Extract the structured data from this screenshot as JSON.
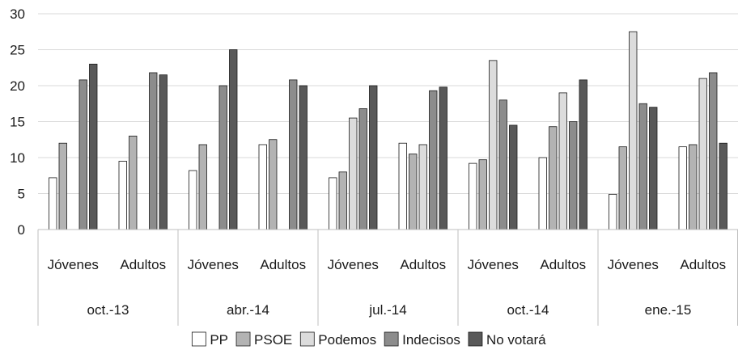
{
  "chart_data": {
    "type": "bar",
    "groups": [
      {
        "label": "oct.-13",
        "categories": [
          "Jóvenes",
          "Adultos"
        ]
      },
      {
        "label": "abr.-14",
        "categories": [
          "Jóvenes",
          "Adultos"
        ]
      },
      {
        "label": "jul.-14",
        "categories": [
          "Jóvenes",
          "Adultos"
        ]
      },
      {
        "label": "oct.-14",
        "categories": [
          "Jóvenes",
          "Adultos"
        ]
      },
      {
        "label": "ene.-15",
        "categories": [
          "Jóvenes",
          "Adultos"
        ]
      }
    ],
    "series": [
      {
        "name": "PP",
        "color": "#ffffff",
        "values": [
          7.2,
          9.5,
          8.2,
          11.8,
          7.2,
          12.0,
          9.2,
          10.0,
          4.9,
          11.5
        ]
      },
      {
        "name": "PSOE",
        "color": "#b3b3b3",
        "values": [
          12.0,
          13.0,
          11.8,
          12.5,
          8.0,
          10.5,
          9.7,
          14.3,
          11.5,
          11.8
        ]
      },
      {
        "name": "Podemos",
        "color": "#dcdcdc",
        "values": [
          null,
          null,
          null,
          null,
          15.5,
          11.8,
          23.5,
          19.0,
          27.5,
          21.0
        ]
      },
      {
        "name": "Indecisos",
        "color": "#8c8c8c",
        "values": [
          20.8,
          21.8,
          20.0,
          20.8,
          16.8,
          19.3,
          18.0,
          15.0,
          17.5,
          21.8
        ]
      },
      {
        "name": "No votará",
        "color": "#595959",
        "values": [
          23.0,
          21.5,
          25.0,
          20.0,
          20.0,
          19.8,
          14.5,
          20.8,
          17.0,
          12.0
        ]
      }
    ],
    "ylim": [
      0,
      30
    ],
    "yticks": [
      "0",
      "5",
      "10",
      "15",
      "20",
      "25",
      "30"
    ],
    "grid": true,
    "legend_position": "bottom"
  }
}
